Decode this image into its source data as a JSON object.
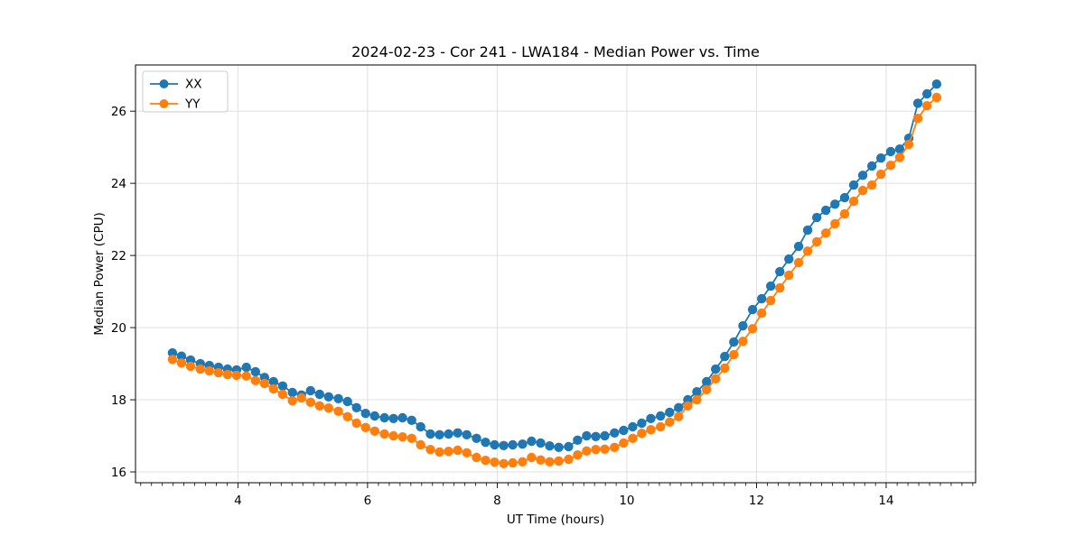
{
  "figure": {
    "title": "2024-02-23 - Cor 241 - LWA184 - Median Power vs. Time",
    "background": "#ffffff",
    "grid_color": "#e0e0e0",
    "spine_color": "#000000"
  },
  "legend": {
    "position": "upper-left",
    "entries": [
      {
        "label": "XX",
        "color": "#1f77b4"
      },
      {
        "label": "YY",
        "color": "#ff7f0e"
      }
    ]
  },
  "chart_data": {
    "type": "line",
    "title": "2024-02-23 - Cor 241 - LWA184 - Median Power vs. Time",
    "xlabel": "UT Time (hours)",
    "ylabel": "Median Power (CPU)",
    "xlim": [
      2.42,
      15.38
    ],
    "ylim": [
      15.7,
      27.28
    ],
    "xticks": [
      4,
      6,
      8,
      10,
      12,
      14
    ],
    "yticks": [
      16,
      18,
      20,
      22,
      24,
      26
    ],
    "x_minor_tick_step": 0.1667,
    "grid": true,
    "legend_position": "upper-left",
    "marker": "o",
    "x": [
      2.99,
      3.13,
      3.27,
      3.42,
      3.56,
      3.7,
      3.84,
      3.98,
      4.13,
      4.27,
      4.41,
      4.55,
      4.69,
      4.84,
      4.98,
      5.12,
      5.26,
      5.4,
      5.55,
      5.69,
      5.83,
      5.97,
      6.11,
      6.26,
      6.4,
      6.54,
      6.68,
      6.82,
      6.97,
      7.11,
      7.25,
      7.39,
      7.53,
      7.68,
      7.82,
      7.96,
      8.1,
      8.24,
      8.39,
      8.53,
      8.67,
      8.81,
      8.95,
      9.1,
      9.24,
      9.38,
      9.52,
      9.66,
      9.81,
      9.95,
      10.09,
      10.23,
      10.37,
      10.52,
      10.66,
      10.8,
      10.94,
      11.08,
      11.23,
      11.37,
      11.51,
      11.65,
      11.79,
      11.94,
      12.08,
      12.22,
      12.36,
      12.5,
      12.65,
      12.79,
      12.93,
      13.07,
      13.21,
      13.36,
      13.5,
      13.64,
      13.78,
      13.92,
      14.07,
      14.21,
      14.35,
      14.49,
      14.63,
      14.78
    ],
    "series": [
      {
        "name": "XX",
        "color": "#1f77b4",
        "values": [
          19.3,
          19.21,
          19.1,
          19.0,
          18.95,
          18.9,
          18.85,
          18.83,
          18.9,
          18.78,
          18.62,
          18.5,
          18.38,
          18.2,
          18.13,
          18.25,
          18.15,
          18.08,
          18.03,
          17.95,
          17.78,
          17.62,
          17.55,
          17.5,
          17.48,
          17.5,
          17.43,
          17.25,
          17.05,
          17.03,
          17.05,
          17.08,
          17.03,
          16.93,
          16.82,
          16.75,
          16.73,
          16.75,
          16.77,
          16.85,
          16.8,
          16.72,
          16.68,
          16.7,
          16.88,
          17.0,
          16.98,
          17.0,
          17.08,
          17.15,
          17.25,
          17.35,
          17.48,
          17.55,
          17.65,
          17.78,
          18.0,
          18.22,
          18.5,
          18.85,
          19.2,
          19.6,
          20.05,
          20.5,
          20.8,
          21.15,
          21.55,
          21.9,
          22.25,
          22.7,
          23.05,
          23.25,
          23.42,
          23.6,
          23.95,
          24.22,
          24.48,
          24.7,
          24.88,
          24.95,
          25.25,
          26.22,
          26.48,
          26.75
        ]
      },
      {
        "name": "YY",
        "color": "#ff7f0e",
        "values": [
          19.12,
          19.02,
          18.93,
          18.85,
          18.8,
          18.75,
          18.7,
          18.68,
          18.66,
          18.53,
          18.45,
          18.3,
          18.15,
          17.97,
          18.05,
          17.93,
          17.83,
          17.77,
          17.68,
          17.53,
          17.35,
          17.23,
          17.13,
          17.05,
          17.0,
          16.97,
          16.93,
          16.75,
          16.62,
          16.55,
          16.57,
          16.6,
          16.53,
          16.4,
          16.32,
          16.27,
          16.23,
          16.25,
          16.28,
          16.4,
          16.33,
          16.28,
          16.3,
          16.35,
          16.47,
          16.58,
          16.62,
          16.63,
          16.68,
          16.8,
          16.93,
          17.07,
          17.17,
          17.25,
          17.38,
          17.53,
          17.83,
          18.0,
          18.28,
          18.58,
          18.88,
          19.25,
          19.62,
          19.97,
          20.4,
          20.75,
          21.1,
          21.45,
          21.8,
          22.12,
          22.38,
          22.62,
          22.88,
          23.15,
          23.5,
          23.8,
          23.95,
          24.25,
          24.5,
          24.72,
          25.08,
          25.8,
          26.15,
          26.38
        ]
      }
    ]
  }
}
